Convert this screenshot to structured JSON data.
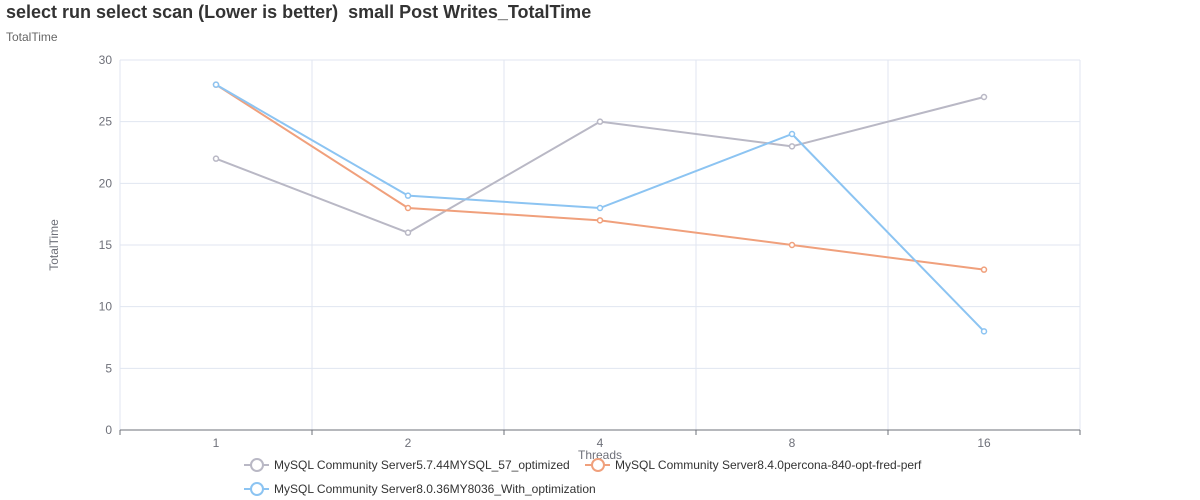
{
  "header": {
    "title": "select run select scan (Lower is better)  small Post Writes_TotalTime",
    "subtitle": "TotalTime"
  },
  "colors": {
    "series": [
      "#b9b8c5",
      "#f0a07c",
      "#8cc4f2"
    ],
    "axis": "#6e7079",
    "grid": "#e0e6f1",
    "text": "#6e7079"
  },
  "chart_data": {
    "type": "line",
    "title": "select run select scan (Lower is better)  small Post Writes_TotalTime",
    "subtitle": "TotalTime",
    "xlabel": "Threads",
    "ylabel": "TotalTime",
    "categories": [
      "1",
      "2",
      "4",
      "8",
      "16"
    ],
    "ylim": [
      0,
      30
    ],
    "yticks": [
      0,
      5,
      10,
      15,
      20,
      25,
      30
    ],
    "grid": true,
    "legend_position": "bottom",
    "series": [
      {
        "name": "MySQL Community Server5.7.44MYSQL_57_optimized",
        "values": [
          22,
          16,
          25,
          23,
          27
        ]
      },
      {
        "name": "MySQL Community Server8.4.0percona-840-opt-fred-perf",
        "values": [
          28,
          18,
          17,
          15,
          13
        ]
      },
      {
        "name": "MySQL Community Server8.0.36MY8036_With_optimization",
        "values": [
          28,
          19,
          18,
          24,
          8
        ]
      }
    ]
  }
}
